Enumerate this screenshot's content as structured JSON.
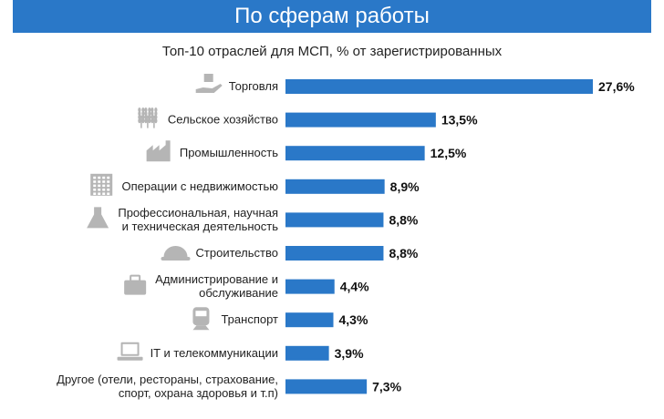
{
  "header": {
    "title": "По сферам работы"
  },
  "chart_data": {
    "type": "bar",
    "orientation": "horizontal",
    "title": "Топ-10 отраслей для МСП, % от зарегистрированных",
    "unit": "%",
    "categories": [
      [
        "Торговля"
      ],
      [
        "Сельское хозяйство"
      ],
      [
        "Промышленность"
      ],
      [
        "Операции с недвижимостью"
      ],
      [
        "Профессиональная, научная",
        "и техническая деятельность"
      ],
      [
        "Строительство"
      ],
      [
        "Администрирование и",
        "обслуживание"
      ],
      [
        "Транспорт"
      ],
      [
        "IT и телекоммуникации"
      ],
      [
        "Другое (отели, рестораны, страхование,",
        "спорт, охрана здоровья и т.п)"
      ]
    ],
    "values": [
      27.6,
      13.5,
      12.5,
      8.9,
      8.8,
      8.8,
      4.4,
      4.3,
      3.9,
      7.3
    ],
    "value_labels": [
      "27,6%",
      "13,5%",
      "12,5%",
      "8,9%",
      "8,8%",
      "8,8%",
      "4,4%",
      "4,3%",
      "3,9%",
      "7,3%"
    ],
    "icons": [
      "box-hand-icon",
      "wheat-icon",
      "factory-icon",
      "building-icon",
      "flask-icon",
      "hardhat-icon",
      "briefcase-icon",
      "train-icon",
      "laptop-icon",
      ""
    ],
    "bar_color": "#2a78c8",
    "icon_color": "#b5b5b5",
    "xlim": [
      0,
      27.6
    ],
    "grid": false,
    "legend": "none"
  }
}
